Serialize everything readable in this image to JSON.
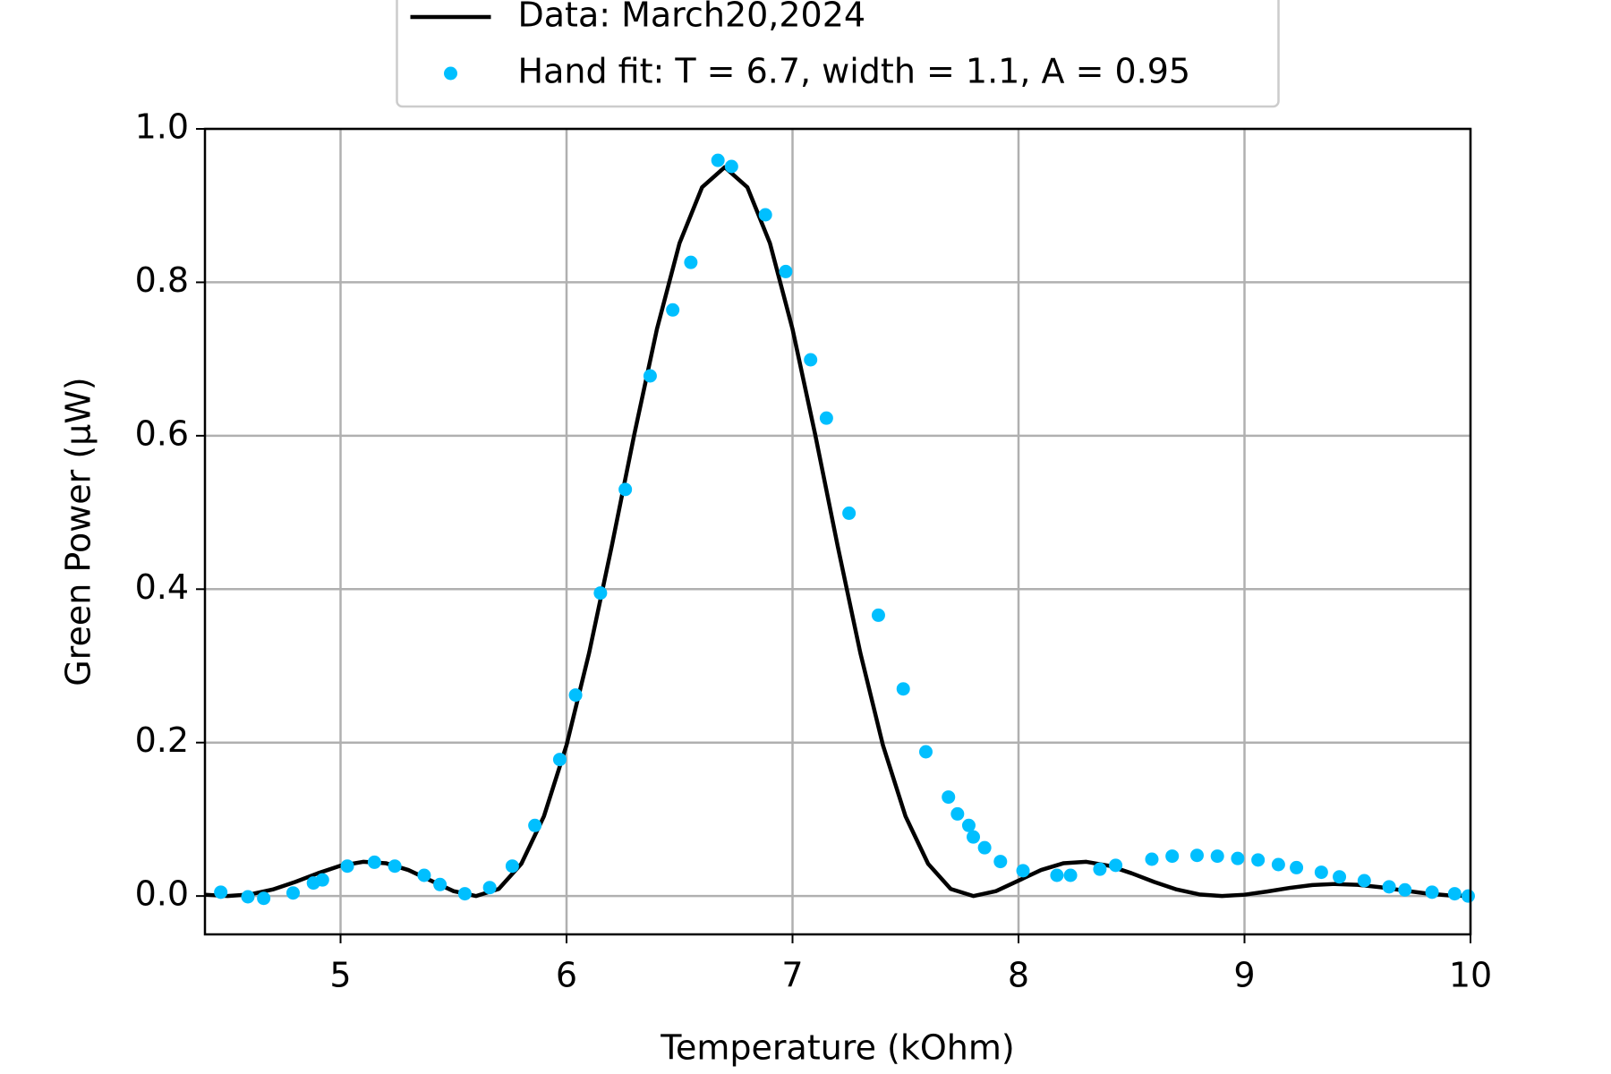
{
  "chart_data": {
    "type": "line",
    "xlabel": "Temperature (kOhm)",
    "ylabel": "Green Power (μW)",
    "xlim": [
      4.4,
      10
    ],
    "ylim": [
      -0.05,
      1.0
    ],
    "xticks": [
      5,
      6,
      7,
      8,
      9,
      10
    ],
    "yticks": [
      {
        "value": 0,
        "label": "0.0"
      },
      0.2,
      0.4,
      0.6,
      0.8,
      {
        "value": 1,
        "label": "1.0"
      }
    ],
    "grid": true,
    "legend": "upper center",
    "series": [
      {
        "name": "Data: March20,2024",
        "type": "line",
        "color": "#000000",
        "x": [
          4.4,
          4.5,
          4.6,
          4.7,
          4.8,
          4.9,
          5.0,
          5.1,
          5.2,
          5.3,
          5.4,
          5.5,
          5.6,
          5.7,
          5.8,
          5.9,
          6.0,
          6.1,
          6.2,
          6.3,
          6.4,
          6.5,
          6.6,
          6.7,
          6.8,
          6.9,
          7.0,
          7.1,
          7.2,
          7.3,
          7.4,
          7.5,
          7.6,
          7.7,
          7.8,
          7.9,
          8.0,
          8.1,
          8.2,
          8.3,
          8.4,
          8.5,
          8.6,
          8.7,
          8.8,
          8.9,
          9.0,
          9.1,
          9.2,
          9.3,
          9.4,
          9.5,
          9.6,
          9.7,
          9.8,
          9.9,
          10.0
        ],
        "values": [
          0.0017,
          0,
          0.0021,
          0.0085,
          0.0184,
          0.0297,
          0.0395,
          0.0446,
          0.0428,
          0.0339,
          0.0201,
          0.0064,
          0,
          0.0092,
          0.042,
          0.1039,
          0.1967,
          0.317,
          0.456,
          0.602,
          0.739,
          0.851,
          0.924,
          0.95,
          0.924,
          0.851,
          0.739,
          0.602,
          0.456,
          0.317,
          0.1967,
          0.1039,
          0.042,
          0.0092,
          0,
          0.0064,
          0.0201,
          0.0339,
          0.0428,
          0.0446,
          0.0395,
          0.0297,
          0.0184,
          0.0085,
          0.0021,
          0,
          0.0017,
          0.0059,
          0.0106,
          0.0143,
          0.0157,
          0.0146,
          0.0115,
          0.0074,
          0.0035,
          0.0009,
          0
        ]
      },
      {
        "name": "Hand fit: T = 6.7, width = 1.1, A = 0.95",
        "type": "scatter",
        "color": "#00bfff",
        "x": [
          4.47,
          4.59,
          4.66,
          4.79,
          4.88,
          4.92,
          5.03,
          5.15,
          5.24,
          5.37,
          5.44,
          5.55,
          5.66,
          5.76,
          5.86,
          5.97,
          6.04,
          6.15,
          6.26,
          6.37,
          6.47,
          6.55,
          6.67,
          6.73,
          6.88,
          6.97,
          7.08,
          7.15,
          7.25,
          7.38,
          7.49,
          7.59,
          7.69,
          7.73,
          7.78,
          7.8,
          7.85,
          7.92,
          8.02,
          8.17,
          8.23,
          8.36,
          8.43,
          8.59,
          8.68,
          8.79,
          8.88,
          8.97,
          9.06,
          9.15,
          9.23,
          9.34,
          9.42,
          9.53,
          9.64,
          9.71,
          9.83,
          9.93,
          9.99
        ],
        "values": [
          0.005,
          -0.001,
          -0.003,
          0.004,
          0.017,
          0.021,
          0.039,
          0.044,
          0.039,
          0.027,
          0.015,
          0.003,
          0.011,
          0.039,
          0.092,
          0.178,
          0.262,
          0.395,
          0.53,
          0.678,
          0.764,
          0.826,
          0.959,
          0.951,
          0.888,
          0.814,
          0.699,
          0.623,
          0.499,
          0.366,
          0.27,
          0.188,
          0.129,
          0.107,
          0.092,
          0.077,
          0.063,
          0.045,
          0.033,
          0.027,
          0.027,
          0.035,
          0.04,
          0.048,
          0.052,
          0.053,
          0.052,
          0.049,
          0.047,
          0.041,
          0.037,
          0.031,
          0.025,
          0.02,
          0.012,
          0.008,
          0.005,
          0.003,
          0
        ]
      }
    ]
  }
}
